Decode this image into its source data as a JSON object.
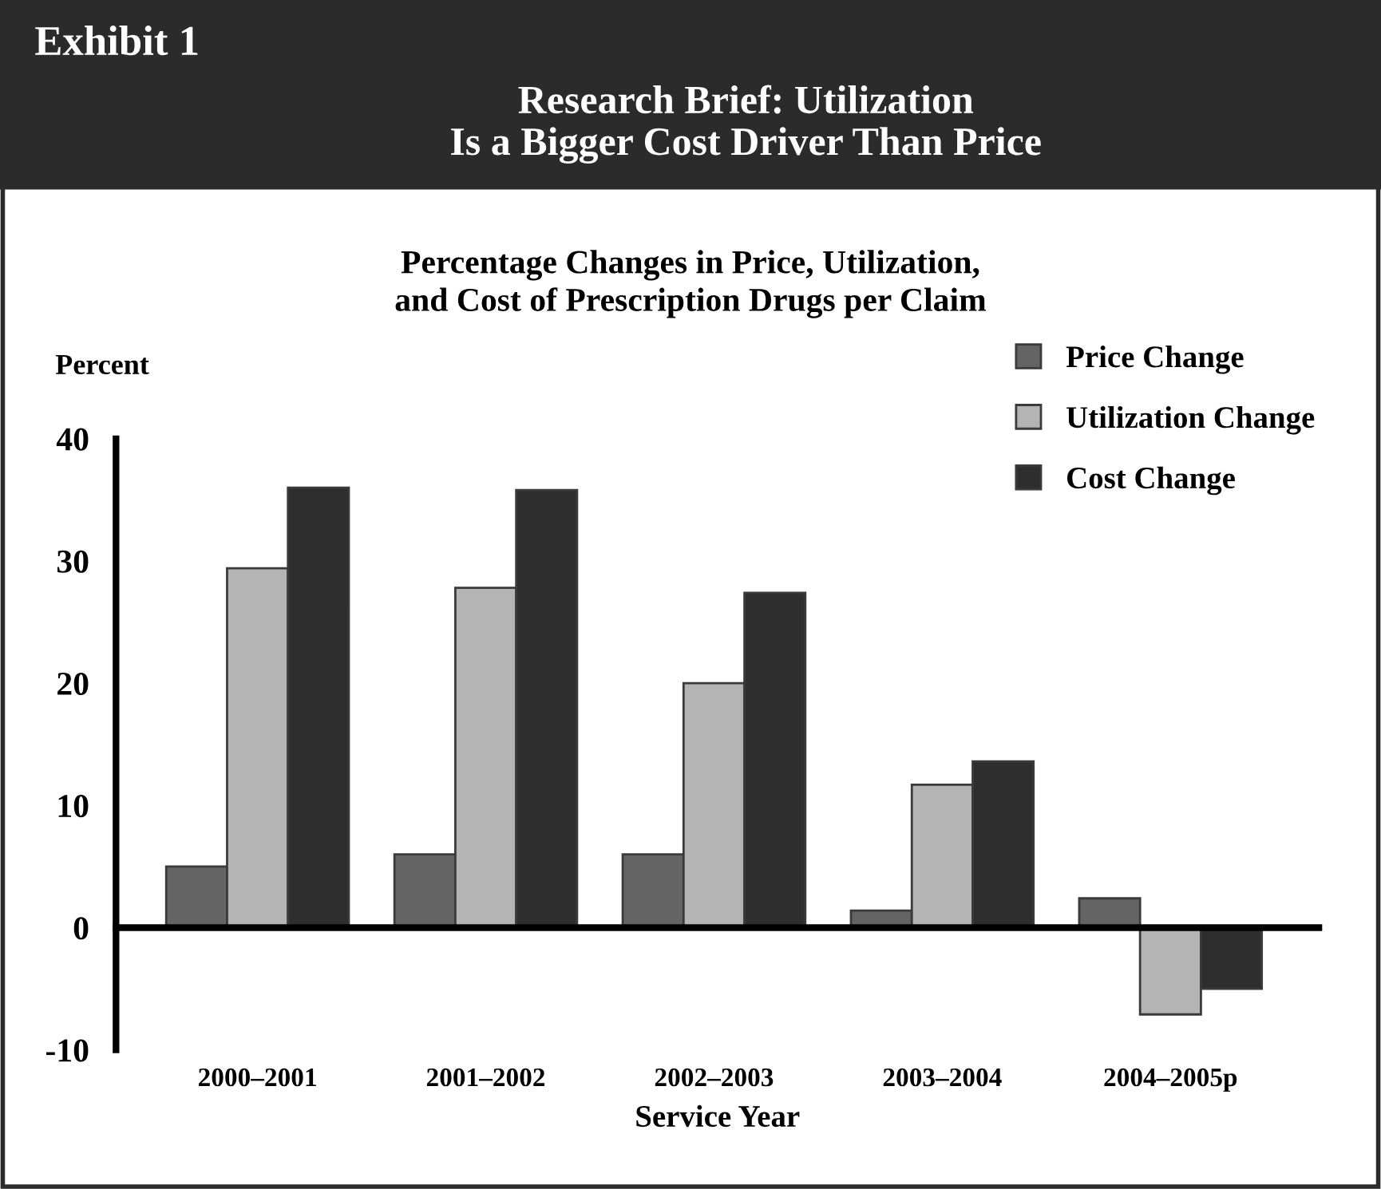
{
  "chart_data": {
    "type": "bar",
    "title": "Research Brief: Utilization\nIs a Bigger Cost Driver Than Price",
    "subtitle": "Percentage Changes in Price, Utilization,\nand Cost of Prescription Drugs per Claim",
    "annotations": [
      "Exhibit 1"
    ],
    "xlabel": "Service Year",
    "ylabel": "Percent",
    "categories": [
      "2000–2001",
      "2001–2002",
      "2002–2003",
      "2003–2004",
      "2004–2005p"
    ],
    "series": [
      {
        "name": "Price Change",
        "color": "#646464",
        "values": [
          5.0,
          6.0,
          6.0,
          1.4,
          2.4
        ]
      },
      {
        "name": "Utilization Change",
        "color": "#b4b4b4",
        "values": [
          29.4,
          27.8,
          20.0,
          11.7,
          -7.1
        ]
      },
      {
        "name": "Cost Change",
        "color": "#2e2e2e",
        "values": [
          36.0,
          35.8,
          27.4,
          13.6,
          -5.0
        ]
      }
    ],
    "ylim": [
      -10,
      40
    ],
    "yticks": [
      -10,
      0,
      10,
      20,
      30,
      40
    ],
    "legend": "top right"
  }
}
